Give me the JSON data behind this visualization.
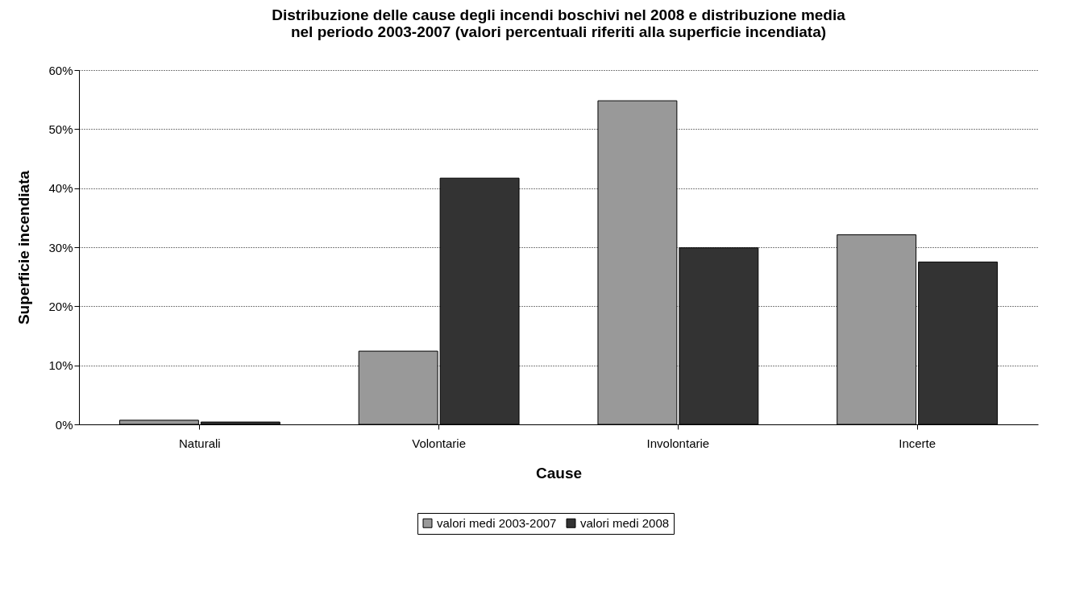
{
  "chart_data": {
    "type": "bar",
    "title": "Distribuzione delle cause degli incendi boschivi nel 2008 e distribuzione media\nnel periodo 2003-2007 (valori percentuali riferiti alla superficie incendiata)",
    "xlabel": "Cause",
    "ylabel": "Superficie incendiata",
    "categories": [
      "Naturali",
      "Volontarie",
      "Involontarie",
      "Incerte"
    ],
    "series": [
      {
        "name": "valori medi 2003-2007",
        "color": "#999999",
        "values": [
          0.7,
          12.4,
          54.8,
          32.1
        ]
      },
      {
        "name": "valori medi 2008",
        "color": "#333333",
        "values": [
          0.4,
          41.7,
          29.9,
          27.5
        ]
      }
    ],
    "ylim": [
      0,
      60
    ],
    "yticks": [
      {
        "value": 0,
        "label": "0%"
      },
      {
        "value": 10,
        "label": "10%"
      },
      {
        "value": 20,
        "label": "20%"
      },
      {
        "value": 30,
        "label": "30%"
      },
      {
        "value": 40,
        "label": "40%"
      },
      {
        "value": 50,
        "label": "50%"
      },
      {
        "value": 60,
        "label": "60%"
      }
    ],
    "grid": "y",
    "legend": "bottom"
  }
}
